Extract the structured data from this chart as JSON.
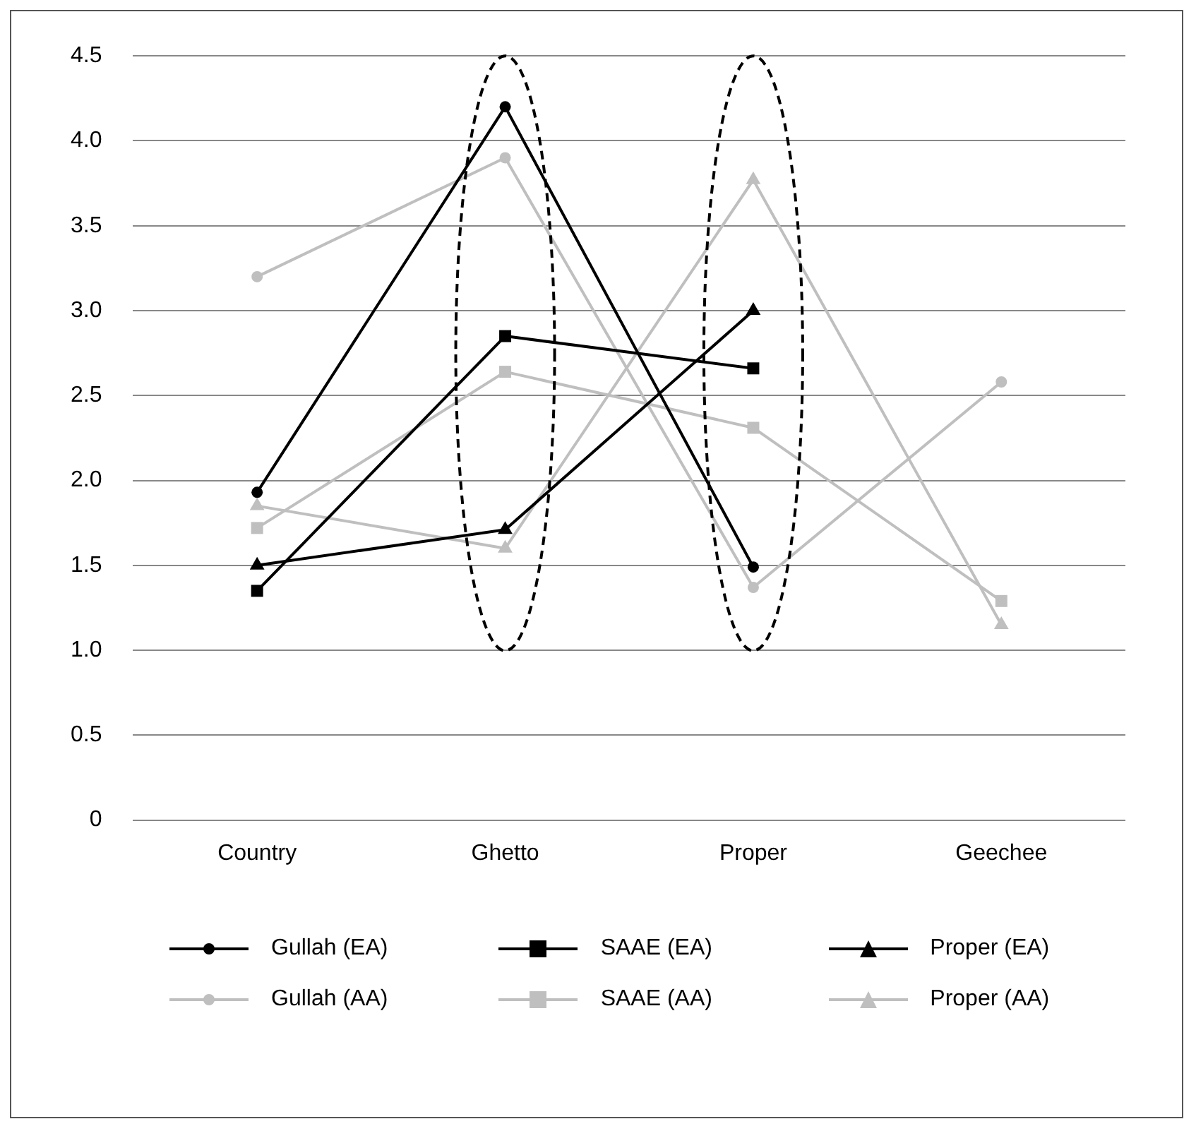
{
  "chart_data": {
    "type": "line",
    "categories": [
      "Country",
      "Ghetto",
      "Proper",
      "Geechee"
    ],
    "series": [
      {
        "name": "Gullah (EA)",
        "color": "#000000",
        "marker": "circle",
        "values": [
          1.93,
          4.2,
          1.49,
          null
        ]
      },
      {
        "name": "SAAE (EA)",
        "color": "#000000",
        "marker": "square",
        "values": [
          1.35,
          2.85,
          2.66,
          null
        ]
      },
      {
        "name": "Proper (EA)",
        "color": "#000000",
        "marker": "triangle",
        "values": [
          1.5,
          1.71,
          3.0,
          null
        ]
      },
      {
        "name": "Gullah (AA)",
        "color": "#bfbfbf",
        "marker": "circle",
        "values": [
          3.2,
          3.9,
          1.37,
          2.58
        ]
      },
      {
        "name": "SAAE (AA)",
        "color": "#bfbfbf",
        "marker": "square",
        "values": [
          1.72,
          2.64,
          2.31,
          1.29
        ]
      },
      {
        "name": "Proper (AA)",
        "color": "#bfbfbf",
        "marker": "triangle",
        "values": [
          1.85,
          1.6,
          3.77,
          1.15
        ]
      }
    ],
    "ylim": [
      0,
      4.5
    ],
    "yticks": [
      0,
      {
        "value": 0.5,
        "label": "0.5"
      },
      {
        "value": 1,
        "label": "1.0"
      },
      {
        "value": 1.5,
        "label": "1.5"
      },
      {
        "value": 2,
        "label": "2.0"
      },
      {
        "value": 2.5,
        "label": "2.5"
      },
      {
        "value": 3,
        "label": "3.0"
      },
      {
        "value": 3.5,
        "label": "3.5"
      },
      {
        "value": 4,
        "label": "4.0"
      },
      {
        "value": 4.5,
        "label": "4.5"
      }
    ],
    "grid": "y",
    "legend": "bottom",
    "line_style": "solid"
  }
}
